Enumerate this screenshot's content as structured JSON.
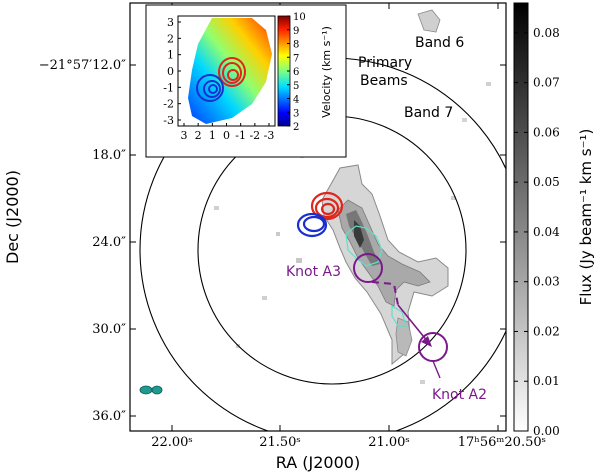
{
  "chart_data": {
    "type": "heatmap",
    "title": "",
    "xlabel": "RA (J2000)",
    "ylabel": "Dec (J2000)",
    "x_ticks": [
      {
        "ra_sec": 22.0,
        "label": "22.00ˢ"
      },
      {
        "ra_sec": 21.5,
        "label": "21.50ˢ"
      },
      {
        "ra_sec": 21.0,
        "label": "21.00ˢ"
      },
      {
        "ra_sec": 20.5,
        "label": "17ʰ56ᵐ20.50ˢ"
      }
    ],
    "y_ticks": [
      {
        "dec_arcsec": 12.0,
        "label": "−21°57′12.0″"
      },
      {
        "dec_arcsec": 18.0,
        "label": "18.0″"
      },
      {
        "dec_arcsec": 24.0,
        "label": "24.0″"
      },
      {
        "dec_arcsec": 30.0,
        "label": "30.0″"
      },
      {
        "dec_arcsec": 36.0,
        "label": "36.0″"
      }
    ],
    "xlim_ra_sec": [
      22.22,
      20.5
    ],
    "ylim_dec_arcsec": [
      37.0,
      5.9
    ],
    "colorbar": {
      "label": "Flux (Jy beam⁻¹ km s⁻¹)",
      "min": 0.0,
      "max": 0.086,
      "ticks": [
        0.0,
        0.01,
        0.02,
        0.03,
        0.04,
        0.05,
        0.06,
        0.07,
        0.08
      ]
    },
    "annotations": {
      "band6": "Band 6",
      "band7": "Band 7",
      "primary": "Primary",
      "beams": "Beams",
      "knot_a3": "Knot A3",
      "knot_a2": "Knot A2"
    },
    "primary_beams": [
      {
        "name": "Band 6",
        "center_ra_sec": 21.22,
        "center_dec_arcsec": 24.8,
        "radius_arcsec": 12.4
      },
      {
        "name": "Band 7",
        "center_ra_sec": 21.22,
        "center_dec_arcsec": 24.8,
        "radius_arcsec": 8.6
      }
    ],
    "knots": [
      {
        "name": "Knot A3",
        "ra_sec": 21.04,
        "dec_arcsec": 26.0
      },
      {
        "name": "Knot A2",
        "ra_sec": 20.74,
        "dec_arcsec": 31.2
      }
    ],
    "inset": {
      "colorbar_label": "Velocity (km s⁻¹)",
      "colorbar_min": 2,
      "colorbar_max": 10,
      "colorbar_ticks": [
        2,
        3,
        4,
        5,
        6,
        7,
        8,
        9,
        10
      ],
      "x_ticks": [
        3,
        2,
        1,
        0,
        -1,
        -2,
        -3
      ],
      "y_ticks": [
        3,
        2,
        1,
        0,
        -1,
        -2,
        -3
      ]
    },
    "grid": false,
    "legend": "none"
  },
  "colors": {
    "blue_contour": "#1a2fd0",
    "red_contour": "#e0251b",
    "knot_purple": "#7a1a8a",
    "cyan_contour": "#5fe0c8",
    "beam_teal": "#1f9a90"
  }
}
